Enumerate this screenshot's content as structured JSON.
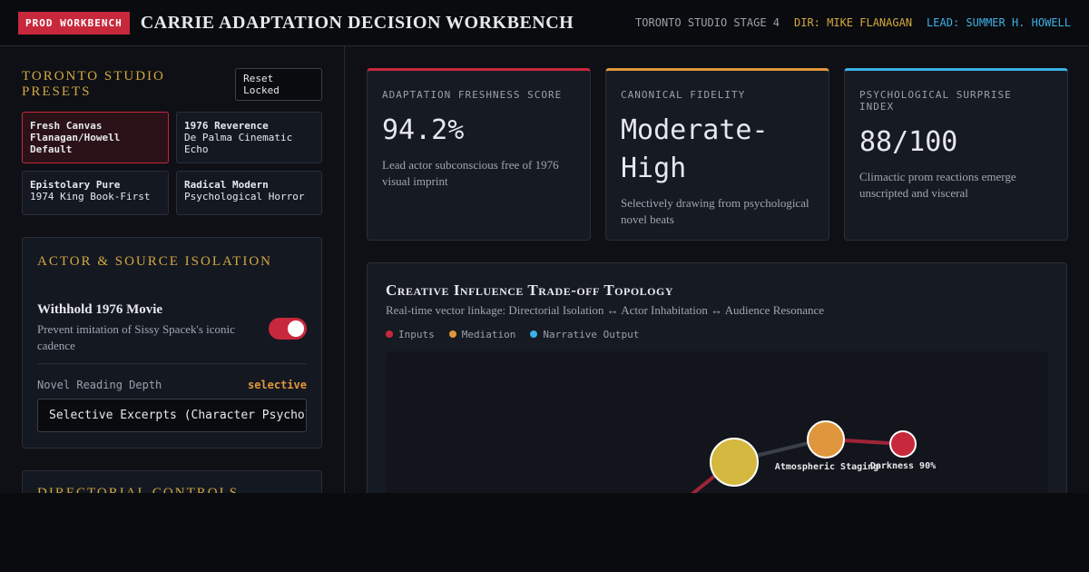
{
  "header": {
    "badge": "PROD WORKBENCH",
    "title": "CARRIE ADAPTATION DECISION WORKBENCH",
    "location": "TORONTO STUDIO STAGE 4",
    "director": "DIR: MIKE FLANAGAN",
    "lead": "LEAD: SUMMER H. HOWELL"
  },
  "presets": {
    "title": "TORONTO STUDIO PRESETS",
    "button": "Reset Locked",
    "items": [
      {
        "name": "Fresh Canvas Flanagan/Howell Default",
        "detail": ""
      },
      {
        "name": "1976 Reverence",
        "detail": "De Palma Cinematic Echo"
      },
      {
        "name": "Epistolary Pure",
        "detail": "1974 King Book-First"
      },
      {
        "name": "Radical Modern",
        "detail": "Psychological Horror"
      }
    ]
  },
  "isolation": {
    "title": "ACTOR & SOURCE ISOLATION",
    "toggle_label": "Withhold 1976 Movie",
    "toggle_desc": "Prevent imitation of Sissy Spacek's iconic cadence",
    "depth_label": "Novel Reading Depth",
    "depth_value": "selective",
    "select_value": "Selective Excerpts (Character Psychology)"
  },
  "directorial": {
    "title": "DIRECTORIAL CONTROLS"
  },
  "metrics": [
    {
      "label": "ADAPTATION FRESHNESS SCORE",
      "value": "94.2%",
      "note": "Lead actor subconscious free of 1976 visual imprint",
      "color": "#c8283c"
    },
    {
      "label": "CANONICAL FIDELITY",
      "value": "Moderate-High",
      "note": "Selectively drawing from psychological novel beats",
      "color": "#e0963c"
    },
    {
      "label": "PSYCHOLOGICAL SURPRISE INDEX",
      "value": "88/100",
      "note": "Climactic prom reactions emerge unscripted and visceral",
      "color": "#3cb0e8"
    }
  ],
  "topology": {
    "title": "Creative Influence Trade-off Topology",
    "subtitle": "Real-time vector linkage: Directorial Isolation ↔ Actor Inhabitation ↔ Audience Resonance",
    "legend": [
      {
        "name": "Inputs",
        "color": "#c8283c"
      },
      {
        "name": "Mediation",
        "color": "#e0963c"
      },
      {
        "name": "Narrative Output",
        "color": "#3cb0e8"
      }
    ],
    "nodes": [
      {
        "label": "Atmospheric Staging"
      },
      {
        "label": "Darkness 90%"
      }
    ]
  }
}
